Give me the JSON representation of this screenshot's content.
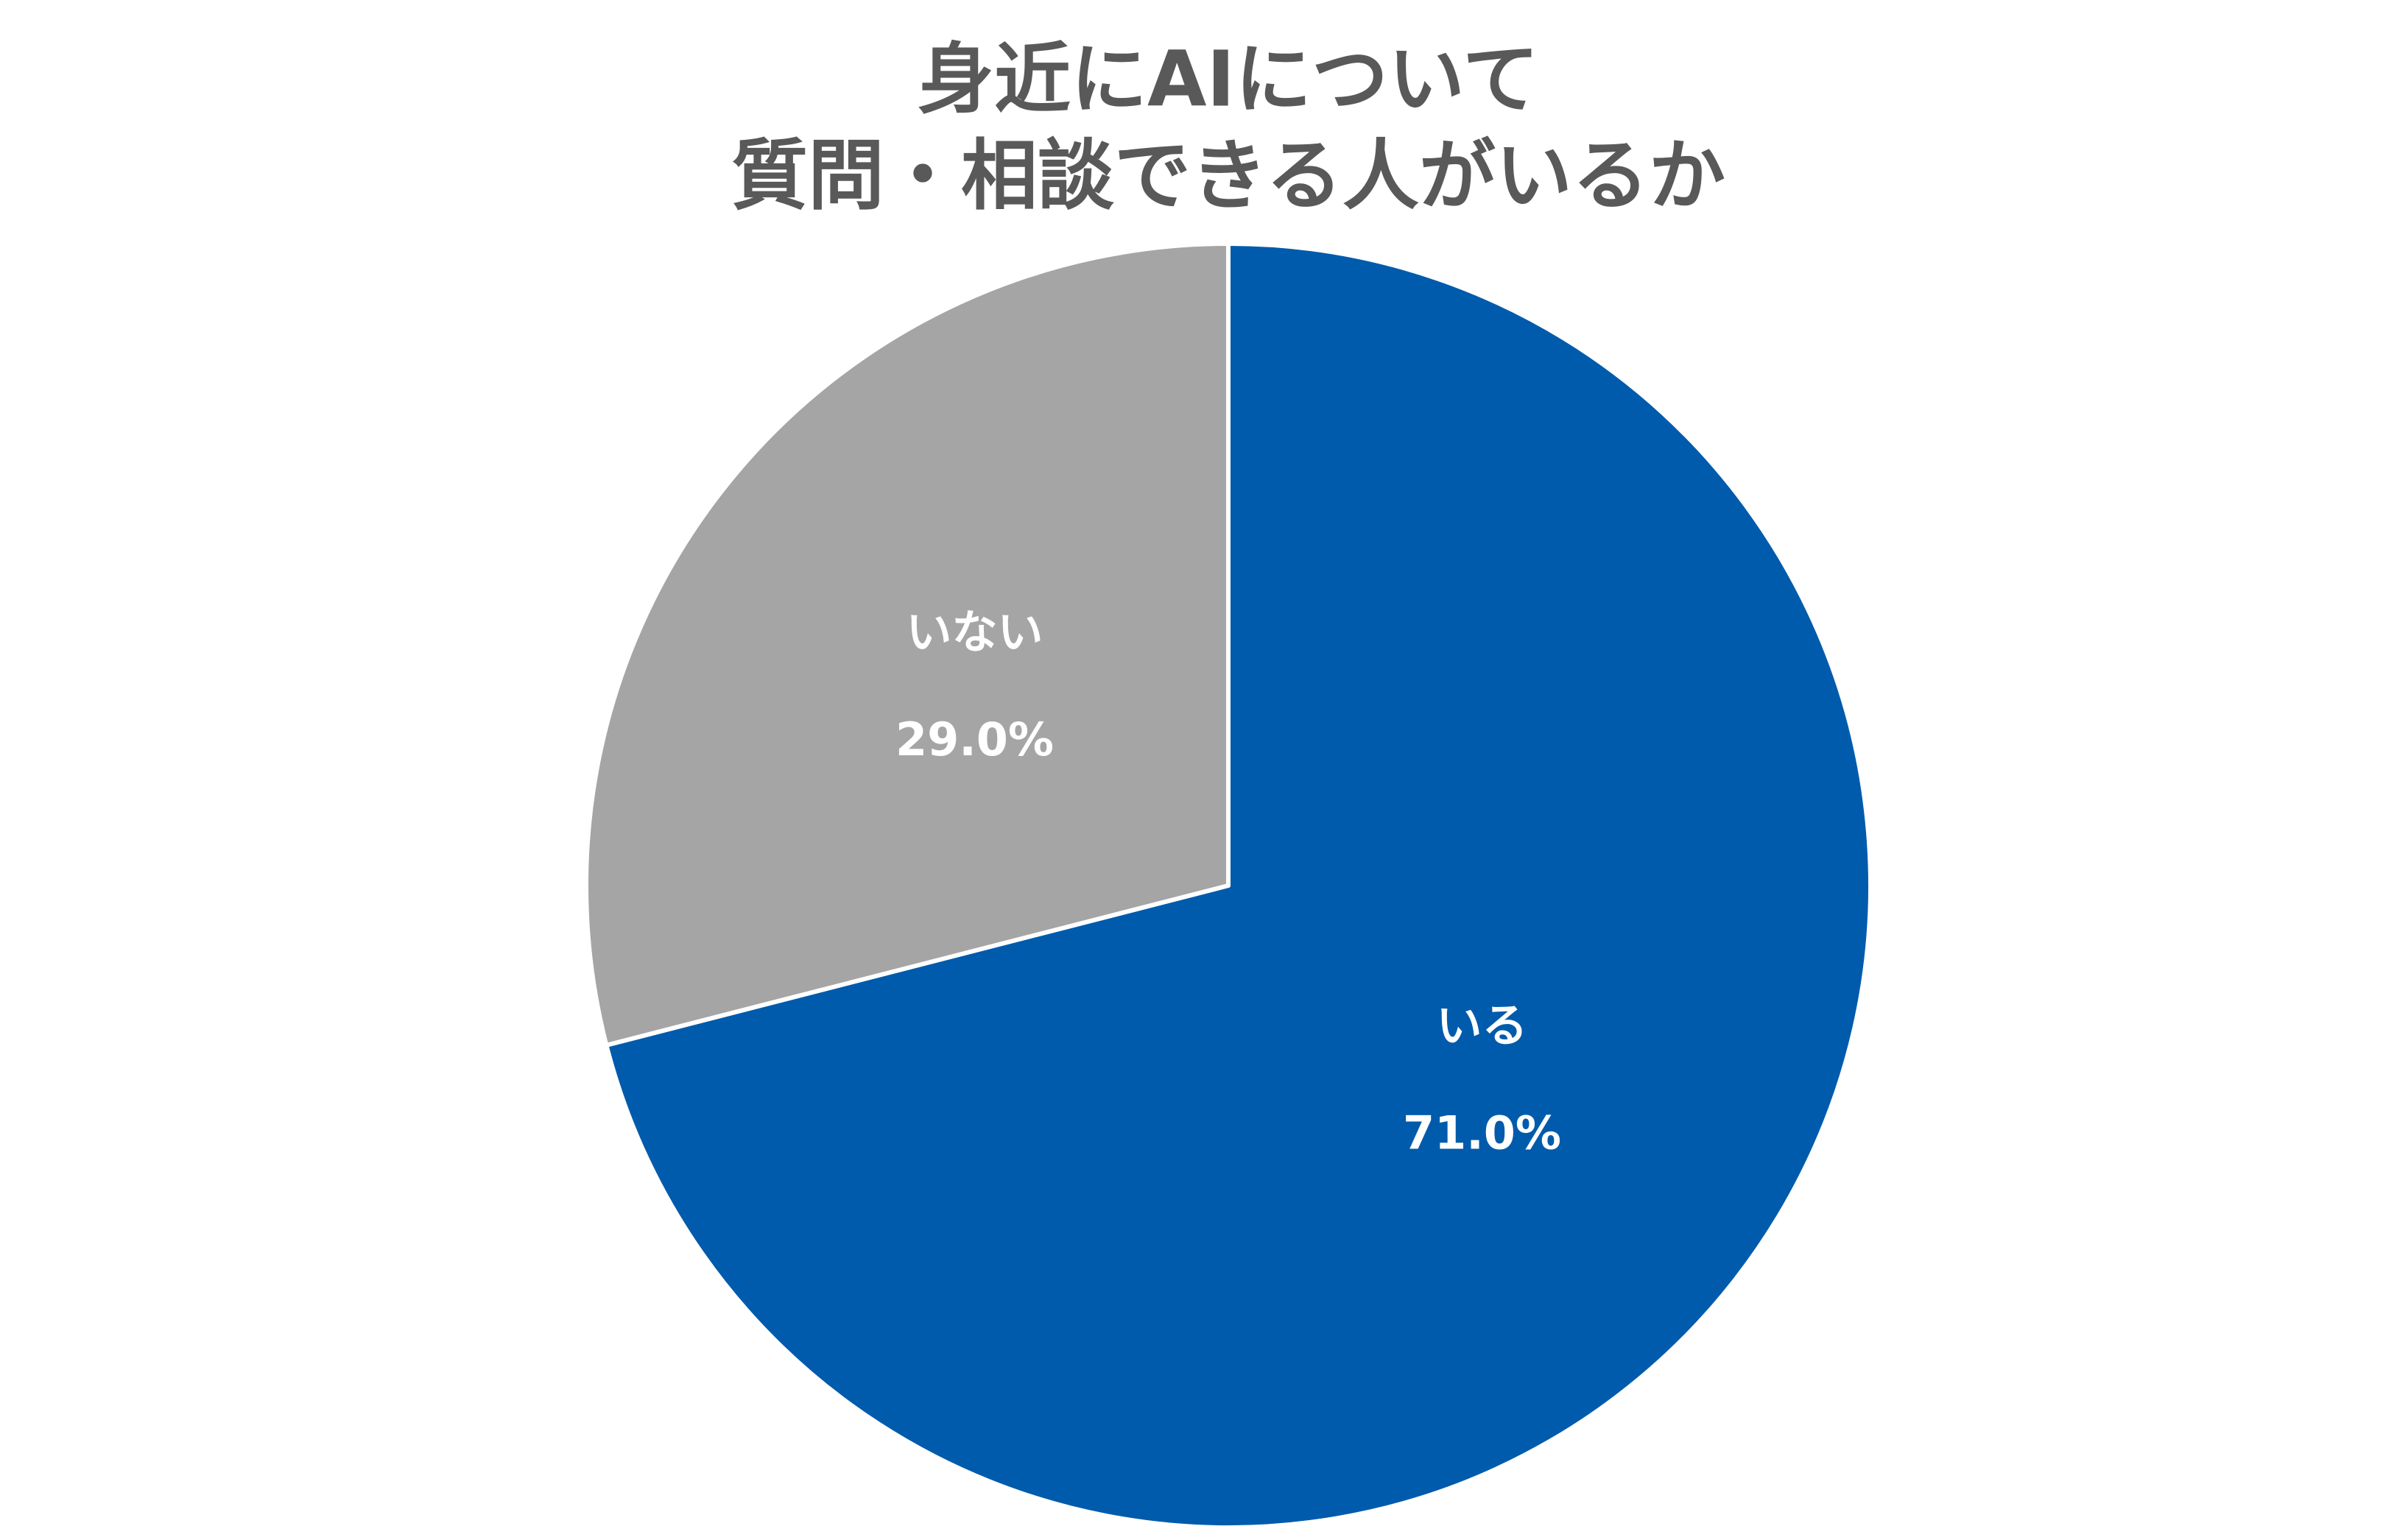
{
  "chart_data": {
    "type": "pie",
    "title": [
      "身近にAIについて",
      "質問・相談できる人がいるか"
    ],
    "categories": [
      "いる",
      "いない"
    ],
    "values": [
      71.0,
      29.0
    ],
    "value_labels": [
      "71.0%",
      "29.0%"
    ],
    "colors": [
      "#005bac",
      "#a5a5a5"
    ]
  }
}
